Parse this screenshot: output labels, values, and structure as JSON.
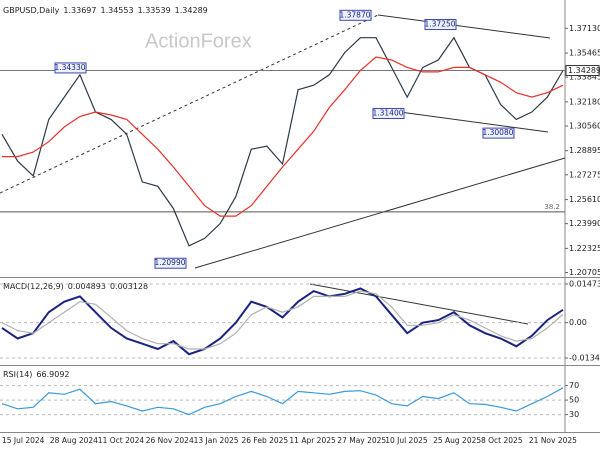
{
  "chart_data": [
    {
      "type": "line",
      "title": "GBPUSD,Daily",
      "ohlc": [
        1.33697,
        1.34553,
        1.33539,
        1.34289
      ],
      "watermark": "ActionForex",
      "ylim": [
        1.204,
        1.389
      ],
      "yticks": [
        {
          "value": 1.3713,
          "label": "1.37130"
        },
        1.35465,
        1.33845,
        {
          "value": 1.3218,
          "label": "1.32180"
        },
        {
          "value": 1.3056,
          "label": "1.30560"
        },
        1.28895,
        1.27275,
        {
          "value": 1.2561,
          "label": "1.25610"
        },
        {
          "value": 1.2399,
          "label": "1.23990"
        },
        1.22325,
        1.20705
      ],
      "last_price": {
        "value": 1.34289,
        "label": "1.34289"
      },
      "fib_level": {
        "value": 1.2478,
        "label": "38.2"
      },
      "annotations": [
        {
          "value": 1.3787,
          "label": "1.37870"
        },
        {
          "value": 1.3725,
          "label": "1.37250"
        },
        {
          "value": 1.3433,
          "label": "1.34330"
        },
        {
          "value": 1.314,
          "label": "1.31400"
        },
        {
          "value": 1.3008,
          "label": "1.30080"
        },
        {
          "value": 1.2099,
          "label": "1.20990"
        }
      ],
      "series": [
        {
          "name": "Close",
          "color": "#2a3a4a",
          "values": [
            1.3,
            1.282,
            1.272,
            1.31,
            1.325,
            1.34,
            1.315,
            1.31,
            1.3,
            1.268,
            1.265,
            1.25,
            1.225,
            1.23,
            1.24,
            1.258,
            1.29,
            1.292,
            1.28,
            1.33,
            1.333,
            1.34,
            1.355,
            1.365,
            1.365,
            1.345,
            1.325,
            1.345,
            1.35,
            1.365,
            1.345,
            1.34,
            1.32,
            1.31,
            1.315,
            1.325,
            1.34289
          ]
        },
        {
          "name": "MA",
          "color": "#e8302a",
          "values": [
            1.285,
            1.285,
            1.288,
            1.295,
            1.305,
            1.312,
            1.315,
            1.313,
            1.31,
            1.3,
            1.29,
            1.278,
            1.265,
            1.252,
            1.245,
            1.245,
            1.252,
            1.265,
            1.278,
            1.29,
            1.302,
            1.318,
            1.33,
            1.343,
            1.352,
            1.35,
            1.345,
            1.342,
            1.342,
            1.345,
            1.345,
            1.34,
            1.335,
            1.328,
            1.325,
            1.328,
            1.333
          ]
        }
      ]
    },
    {
      "type": "line",
      "title": "MACD(12,26,9)",
      "readout": [
        0.004893,
        0.003128
      ],
      "ylim": [
        -0.0161,
        0.017
      ],
      "yticks": [
        0.014734,
        {
          "value": 0,
          "label": "0.00"
        },
        -0.013442
      ],
      "ref_lines": true,
      "series": [
        {
          "name": "MACD",
          "color": "#1a237e",
          "values": [
            -0.002,
            -0.006,
            -0.004,
            0.004,
            0.008,
            0.01,
            0.004,
            -0.002,
            -0.006,
            -0.008,
            -0.01,
            -0.007,
            -0.012,
            -0.01,
            -0.006,
            0.0,
            0.008,
            0.006,
            0.002,
            0.008,
            0.012,
            0.01,
            0.011,
            0.013,
            0.01,
            0.003,
            -0.004,
            0.0,
            0.001,
            0.004,
            -0.001,
            -0.004,
            -0.006,
            -0.009,
            -0.005,
            0.001,
            0.004893
          ]
        },
        {
          "name": "Signal",
          "color": "#b0b0b0",
          "values": [
            0.0,
            -0.003,
            -0.004,
            0.0,
            0.004,
            0.008,
            0.007,
            0.002,
            -0.003,
            -0.006,
            -0.008,
            -0.008,
            -0.01,
            -0.01,
            -0.008,
            -0.004,
            0.003,
            0.006,
            0.004,
            0.006,
            0.01,
            0.01,
            0.01,
            0.012,
            0.011,
            0.006,
            -0.001,
            -0.001,
            0.0,
            0.003,
            0.001,
            -0.002,
            -0.005,
            -0.007,
            -0.006,
            -0.002,
            0.003128
          ]
        }
      ]
    },
    {
      "type": "line",
      "title": "RSI(14)",
      "readout": [
        66.9092
      ],
      "ylim": [
        6,
        97
      ],
      "yticks": [
        70,
        50,
        30
      ],
      "ref_lines": true,
      "x_labels": [
        "15 Jul 2024",
        "28 Aug 2024",
        "11 Oct 2024",
        "26 Nov 2024",
        "13 Jan 2025",
        "26 Feb 2025",
        "11 Apr 2025",
        "27 May 2025",
        "10 Jul 2025",
        "25 Aug 2025",
        "8 Oct 2025",
        "21 Nov 2025"
      ],
      "series": [
        {
          "name": "RSI",
          "color": "#3a9ad9",
          "values": [
            45,
            38,
            40,
            60,
            58,
            65,
            45,
            48,
            42,
            35,
            40,
            38,
            30,
            40,
            45,
            55,
            62,
            55,
            45,
            62,
            60,
            58,
            62,
            63,
            57,
            45,
            42,
            55,
            52,
            60,
            45,
            44,
            40,
            35,
            45,
            55,
            66.9092
          ]
        }
      ]
    }
  ]
}
